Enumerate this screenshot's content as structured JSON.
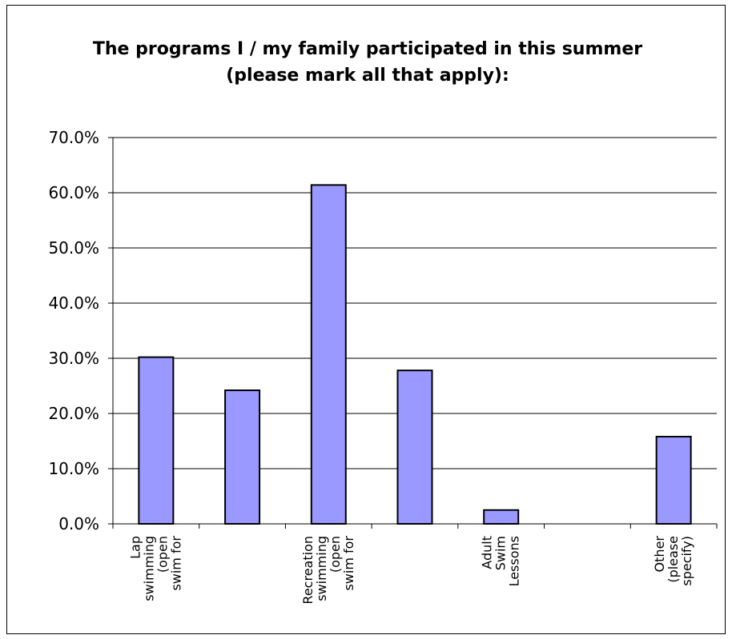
{
  "chart_data": {
    "type": "bar",
    "title": "The programs I / my family participated in this summer (please mark all that apply):",
    "xlabel": "",
    "ylabel": "",
    "ylim": [
      0,
      70
    ],
    "y_tick_labels": [
      "0.0%",
      "10.0%",
      "20.0%",
      "30.0%",
      "40.0%",
      "50.0%",
      "60.0%",
      "70.0%"
    ],
    "y_tick_values": [
      0,
      10,
      20,
      30,
      40,
      50,
      60,
      70
    ],
    "grid": true,
    "legend": "none",
    "bar_color": "#9999ff",
    "categories": [
      [
        "Lap",
        "swimming",
        "(open",
        "swim for"
      ],
      [],
      [
        "Recreation",
        "swimming",
        "(open",
        "swim for"
      ],
      [],
      [
        "Adult",
        "Swim",
        "Lessons"
      ],
      [],
      [
        "Other",
        "(please",
        "specify)"
      ]
    ],
    "values": [
      30.2,
      24.2,
      61.4,
      27.8,
      2.5,
      0,
      15.8
    ]
  }
}
